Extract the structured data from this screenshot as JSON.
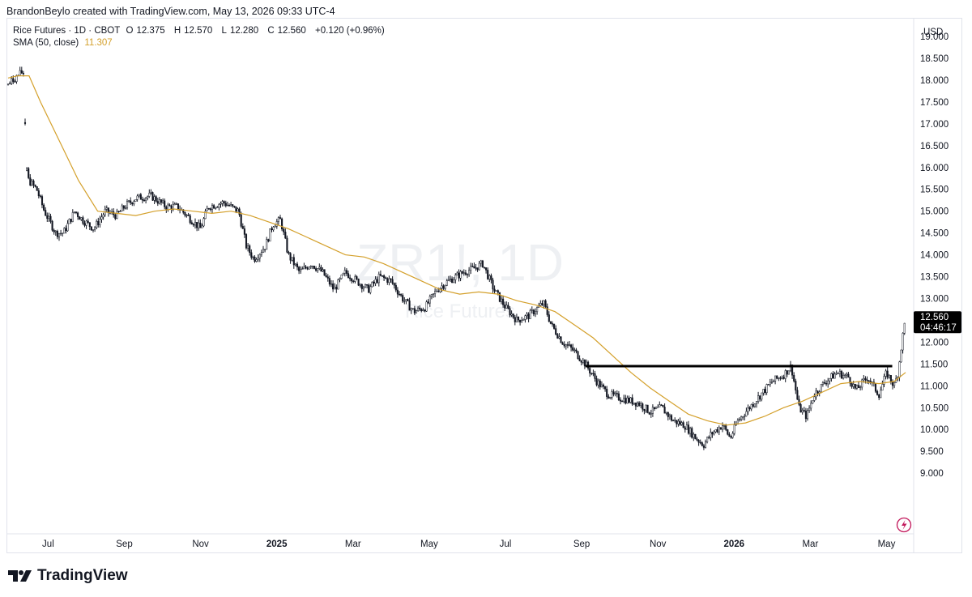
{
  "header": {
    "text": "BrandonBeylo created with TradingView.com, May 13, 2026 09:33 UTC-4"
  },
  "legend": {
    "symbol": "Rice Futures · 1D · CBOT",
    "open_label": "O",
    "open": "12.375",
    "high_label": "H",
    "high": "12.570",
    "low_label": "L",
    "low": "12.280",
    "close_label": "C",
    "close": "12.560",
    "change": "+0.120 (+0.96%)",
    "sma_label": "SMA (50, close)",
    "sma_value": "11.307"
  },
  "currency": "USD",
  "watermark": {
    "symbol": "ZR1!, 1D",
    "subtitle": "Rice Futures"
  },
  "price_tag": {
    "price": "12.560",
    "countdown": "04:46:17"
  },
  "footer": {
    "brand": "TradingView"
  },
  "colors": {
    "candle": "#131722",
    "sma": "#d4a02b",
    "resistance": "#000000",
    "grid_border": "#e0e3eb"
  },
  "icons": {
    "alert": "lightning-icon",
    "logo": "tradingview-logo-icon"
  },
  "chart_data": {
    "type": "candlestick",
    "timeframe": "1D",
    "ylim": [
      8.8,
      19.3
    ],
    "y_ticks": [
      "19.000",
      "18.500",
      "18.000",
      "17.500",
      "17.000",
      "16.500",
      "16.000",
      "15.500",
      "15.000",
      "14.500",
      "14.000",
      "13.500",
      "13.000",
      "12.500",
      "12.000",
      "11.500",
      "11.000",
      "10.500",
      "10.000",
      "9.500",
      "9.000"
    ],
    "x_ticks": [
      {
        "label": "Jul",
        "m": 1.7,
        "bold": false
      },
      {
        "label": "Sep",
        "m": 3.7,
        "bold": false
      },
      {
        "label": "Nov",
        "m": 5.7,
        "bold": false
      },
      {
        "label": "2025",
        "m": 7.7,
        "bold": true
      },
      {
        "label": "Mar",
        "m": 9.7,
        "bold": false
      },
      {
        "label": "May",
        "m": 11.7,
        "bold": false
      },
      {
        "label": "Jul",
        "m": 13.7,
        "bold": false
      },
      {
        "label": "Sep",
        "m": 15.7,
        "bold": false
      },
      {
        "label": "Nov",
        "m": 17.7,
        "bold": false
      },
      {
        "label": "2026",
        "m": 19.7,
        "bold": true
      },
      {
        "label": "Mar",
        "m": 21.7,
        "bold": false
      },
      {
        "label": "May",
        "m": 23.7,
        "bold": false
      }
    ],
    "xlim": [
      0.65,
      24.2
    ],
    "price_path": [
      [
        0.65,
        17.9
      ],
      [
        0.9,
        18.1
      ],
      [
        1.05,
        18.2
      ],
      [
        1.15,
        15.75
      ],
      [
        1.4,
        15.5
      ],
      [
        1.6,
        15.0
      ],
      [
        1.9,
        14.5
      ],
      [
        2.1,
        14.5
      ],
      [
        2.4,
        15.0
      ],
      [
        2.6,
        14.8
      ],
      [
        2.9,
        14.6
      ],
      [
        3.2,
        15.0
      ],
      [
        3.5,
        14.9
      ],
      [
        3.7,
        15.1
      ],
      [
        4.0,
        15.3
      ],
      [
        4.4,
        15.35
      ],
      [
        4.8,
        15.1
      ],
      [
        5.1,
        15.1
      ],
      [
        5.4,
        14.85
      ],
      [
        5.7,
        14.6
      ],
      [
        5.9,
        15.1
      ],
      [
        6.3,
        15.2
      ],
      [
        6.7,
        15.0
      ],
      [
        6.9,
        14.2
      ],
      [
        7.1,
        13.9
      ],
      [
        7.4,
        14.2
      ],
      [
        7.6,
        14.7
      ],
      [
        7.8,
        14.8
      ],
      [
        8.0,
        14.0
      ],
      [
        8.3,
        13.6
      ],
      [
        8.6,
        13.8
      ],
      [
        8.9,
        13.6
      ],
      [
        9.2,
        13.2
      ],
      [
        9.5,
        13.6
      ],
      [
        9.8,
        13.4
      ],
      [
        10.1,
        13.2
      ],
      [
        10.4,
        13.5
      ],
      [
        10.7,
        13.4
      ],
      [
        11.0,
        13.0
      ],
      [
        11.3,
        12.7
      ],
      [
        11.6,
        12.8
      ],
      [
        11.9,
        13.2
      ],
      [
        12.2,
        13.4
      ],
      [
        12.6,
        13.6
      ],
      [
        12.9,
        13.7
      ],
      [
        13.1,
        13.8
      ],
      [
        13.4,
        13.2
      ],
      [
        13.7,
        12.8
      ],
      [
        14.0,
        12.5
      ],
      [
        14.3,
        12.6
      ],
      [
        14.7,
        12.9
      ],
      [
        14.9,
        12.4
      ],
      [
        15.2,
        12.0
      ],
      [
        15.5,
        11.8
      ],
      [
        15.8,
        11.5
      ],
      [
        16.1,
        11.1
      ],
      [
        16.4,
        10.8
      ],
      [
        16.8,
        10.7
      ],
      [
        17.2,
        10.6
      ],
      [
        17.5,
        10.4
      ],
      [
        17.8,
        10.5
      ],
      [
        18.1,
        10.2
      ],
      [
        18.4,
        10.1
      ],
      [
        18.7,
        9.8
      ],
      [
        18.9,
        9.65
      ],
      [
        19.1,
        9.9
      ],
      [
        19.4,
        10.1
      ],
      [
        19.6,
        9.8
      ],
      [
        19.8,
        10.2
      ],
      [
        20.1,
        10.5
      ],
      [
        20.4,
        10.8
      ],
      [
        20.7,
        11.1
      ],
      [
        21.0,
        11.25
      ],
      [
        21.2,
        11.45
      ],
      [
        21.4,
        10.5
      ],
      [
        21.6,
        10.3
      ],
      [
        21.8,
        10.8
      ],
      [
        22.1,
        11.1
      ],
      [
        22.4,
        11.3
      ],
      [
        22.7,
        11.2
      ],
      [
        22.9,
        10.9
      ],
      [
        23.2,
        11.2
      ],
      [
        23.5,
        10.8
      ],
      [
        23.7,
        11.3
      ],
      [
        23.9,
        11.0
      ],
      [
        24.0,
        11.3
      ],
      [
        24.1,
        12.0
      ],
      [
        24.2,
        12.56
      ]
    ],
    "sma_path": [
      [
        0.65,
        18.05
      ],
      [
        0.9,
        18.1
      ],
      [
        1.2,
        18.1
      ],
      [
        1.5,
        17.5
      ],
      [
        2.0,
        16.6
      ],
      [
        2.5,
        15.7
      ],
      [
        3.0,
        15.0
      ],
      [
        3.5,
        14.95
      ],
      [
        4.0,
        14.9
      ],
      [
        4.5,
        15.0
      ],
      [
        5.0,
        15.05
      ],
      [
        5.5,
        15.0
      ],
      [
        6.0,
        14.95
      ],
      [
        6.5,
        15.0
      ],
      [
        7.0,
        14.9
      ],
      [
        7.5,
        14.75
      ],
      [
        8.0,
        14.6
      ],
      [
        8.5,
        14.4
      ],
      [
        9.0,
        14.2
      ],
      [
        9.5,
        14.0
      ],
      [
        10.0,
        13.95
      ],
      [
        10.5,
        13.8
      ],
      [
        11.0,
        13.6
      ],
      [
        11.5,
        13.4
      ],
      [
        12.0,
        13.2
      ],
      [
        12.5,
        13.1
      ],
      [
        13.0,
        13.15
      ],
      [
        13.5,
        13.1
      ],
      [
        14.0,
        12.95
      ],
      [
        14.5,
        12.85
      ],
      [
        15.0,
        12.7
      ],
      [
        15.5,
        12.4
      ],
      [
        16.0,
        12.1
      ],
      [
        16.5,
        11.7
      ],
      [
        17.0,
        11.3
      ],
      [
        17.5,
        10.95
      ],
      [
        18.0,
        10.65
      ],
      [
        18.5,
        10.35
      ],
      [
        19.0,
        10.2
      ],
      [
        19.5,
        10.1
      ],
      [
        20.0,
        10.15
      ],
      [
        20.5,
        10.3
      ],
      [
        21.0,
        10.5
      ],
      [
        21.5,
        10.65
      ],
      [
        22.0,
        10.85
      ],
      [
        22.5,
        11.05
      ],
      [
        23.0,
        11.1
      ],
      [
        23.5,
        11.05
      ],
      [
        23.9,
        11.1
      ],
      [
        24.2,
        11.307
      ]
    ],
    "resistance": {
      "start_m": 15.8,
      "end_m": 23.85,
      "value": 11.45
    }
  }
}
